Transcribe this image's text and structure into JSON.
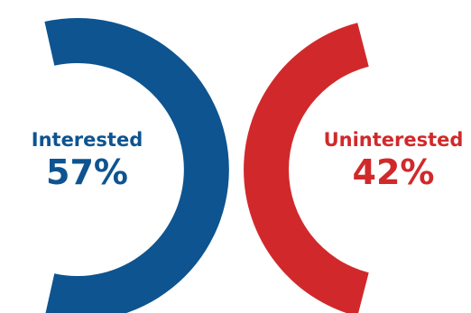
{
  "chart_data": {
    "type": "pie",
    "style": "split-half-donut",
    "series": [
      {
        "name": "Interested",
        "value": 57,
        "value_label": "57%",
        "color": "#0d5490",
        "side": "left"
      },
      {
        "name": "Uninterested",
        "value": 42,
        "value_label": "42%",
        "color": "#d1292b",
        "side": "right"
      }
    ],
    "title": "",
    "legend": "none"
  }
}
